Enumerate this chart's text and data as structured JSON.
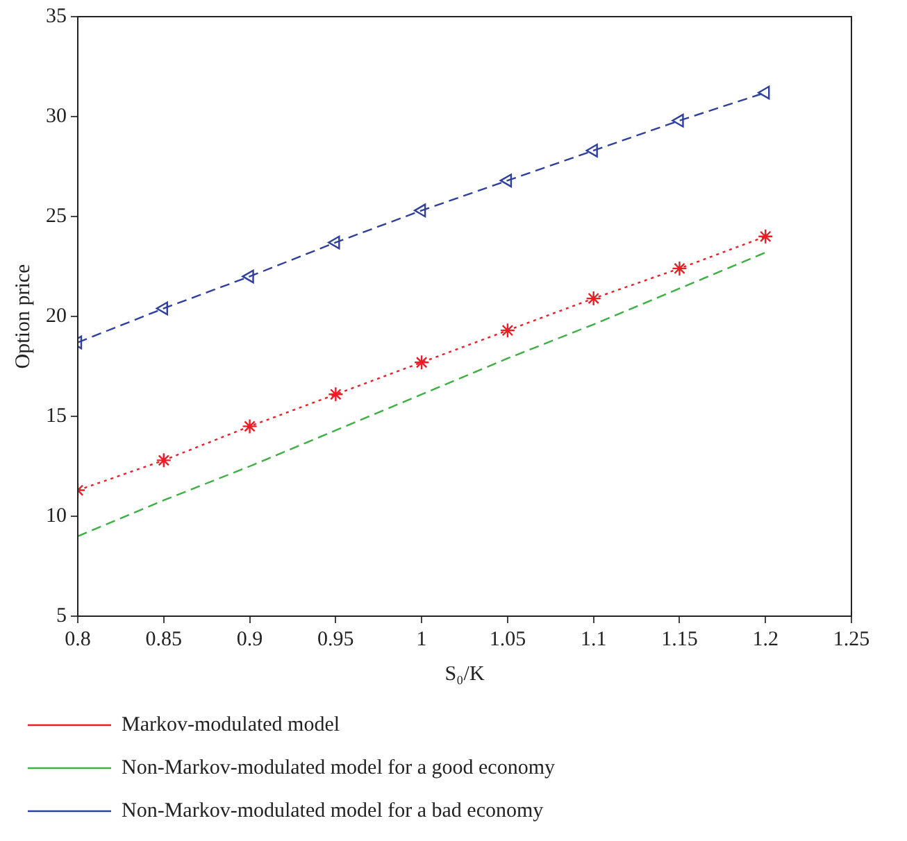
{
  "chart_data": {
    "type": "line",
    "xlabel": "S₀/K",
    "ylabel": "Option price",
    "x": [
      0.8,
      0.85,
      0.9,
      0.95,
      1,
      1.05,
      1.1,
      1.15,
      1.2
    ],
    "xlim": [
      0.8,
      1.25
    ],
    "xticks": [
      0.8,
      0.85,
      0.9,
      0.95,
      1,
      1.05,
      1.1,
      1.15,
      1.2,
      1.25
    ],
    "ylim": [
      5,
      35
    ],
    "yticks": [
      5,
      10,
      15,
      20,
      25,
      30,
      35
    ],
    "grid": false,
    "legend": "bottom",
    "series": [
      {
        "name": "Markov-modulated model",
        "color": "#ee1c25",
        "marker": "cross",
        "line_style": "dotted",
        "values": [
          11.3,
          12.8,
          14.5,
          16.1,
          17.7,
          19.3,
          20.9,
          22.4,
          24.0
        ]
      },
      {
        "name": "Non-Markov-modulated model for a good economy",
        "color": "#3cb043",
        "marker": "none",
        "line_style": "dashed",
        "values": [
          9.0,
          10.8,
          12.5,
          14.3,
          16.1,
          17.9,
          19.6,
          21.4,
          23.2
        ]
      },
      {
        "name": "Non-Markov-modulated model for a bad economy",
        "color": "#2e3f9e",
        "marker": "triangle",
        "line_style": "dashed",
        "values": [
          18.7,
          20.4,
          22.0,
          23.7,
          25.3,
          26.8,
          28.3,
          29.8,
          31.2
        ]
      }
    ]
  }
}
